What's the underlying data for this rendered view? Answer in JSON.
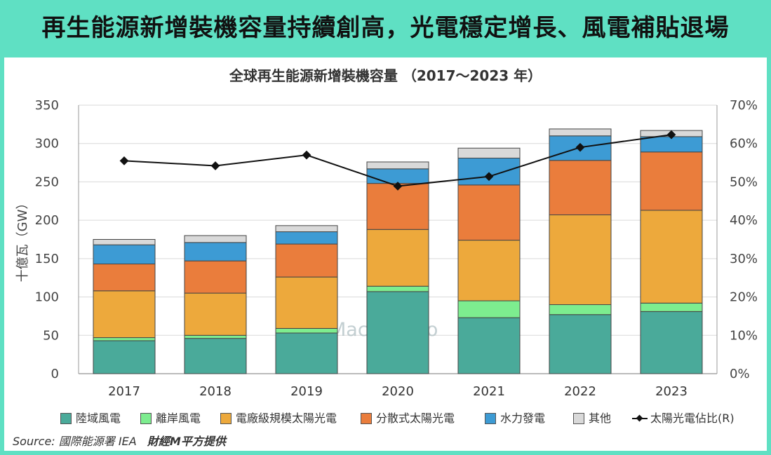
{
  "headline": "再生能源新增裝機容量持續創高，光電穩定增長、風電補貼退場",
  "source_label": "Source: 國際能源署 IEA",
  "source_credit": "財經M平方提供",
  "watermark": "MacroMicro",
  "chart_data": {
    "type": "bar",
    "stacked": true,
    "title": "全球再生能源新增裝機容量 （2017～2023 年）",
    "ylabel": "十億瓦（GW）",
    "ylim": [
      0,
      350
    ],
    "y2lim": [
      0,
      70
    ],
    "yticks": [
      "0",
      "50",
      "100",
      "150",
      "200",
      "250",
      "300",
      "350"
    ],
    "y2ticks": [
      "0%",
      "10%",
      "20%",
      "30%",
      "40%",
      "50%",
      "60%",
      "70%"
    ],
    "grid": true,
    "legend_position": "bottom",
    "categories": [
      "2017",
      "2018",
      "2019",
      "2020",
      "2021",
      "2022",
      "2023"
    ],
    "series": [
      {
        "name": "陸域風電",
        "color": "#4aaa9a",
        "values": [
          43,
          46,
          53,
          107,
          73,
          77,
          81
        ]
      },
      {
        "name": "離岸風電",
        "color": "#7ded8f",
        "values": [
          4,
          4,
          6,
          7,
          22,
          13,
          11
        ]
      },
      {
        "name": "電廠級規模太陽光電",
        "color": "#eda93c",
        "values": [
          61,
          55,
          67,
          74,
          79,
          117,
          121
        ]
      },
      {
        "name": "分散式太陽光電",
        "color": "#ea7d3c",
        "values": [
          35,
          42,
          43,
          60,
          72,
          71,
          76
        ]
      },
      {
        "name": "水力發電",
        "color": "#3d9bd4",
        "values": [
          25,
          24,
          16,
          19,
          35,
          32,
          20
        ]
      },
      {
        "name": "其他",
        "color": "#d9d9d9",
        "values": [
          7,
          9,
          8,
          9,
          13,
          9,
          8
        ]
      }
    ],
    "line_series": {
      "name": "太陽光電佔比(R)",
      "color": "#111111",
      "axis": "right",
      "values": [
        55.5,
        54.2,
        57.0,
        48.9,
        51.4,
        59.0,
        62.3
      ]
    }
  }
}
